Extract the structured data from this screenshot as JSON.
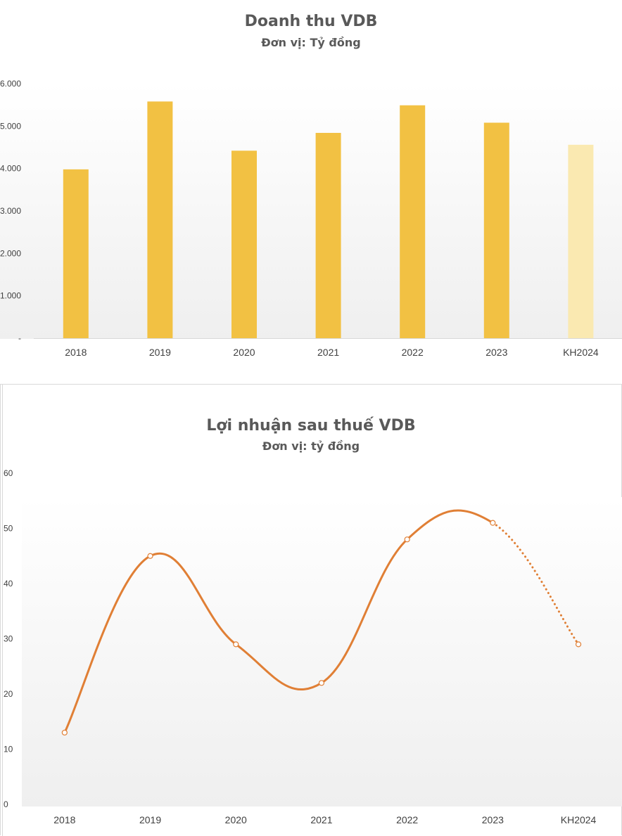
{
  "chart_data": [
    {
      "type": "bar",
      "title": "Doanh thu VDB",
      "subtitle": "Đơn vị: Tỷ đồng",
      "categories": [
        "2018",
        "2019",
        "2020",
        "2021",
        "2022",
        "2023",
        "KH2024"
      ],
      "values": [
        3980,
        5580,
        4420,
        4840,
        5490,
        5080,
        4560
      ],
      "ylim": [
        0,
        6000
      ],
      "yticks": [
        "-",
        "1.000",
        "2.000",
        "3.000",
        "4.000",
        "5.000",
        "6.000"
      ],
      "grid": false,
      "legend": "none",
      "colors": {
        "bar": "#f2c143",
        "plan_bar": "#fae9b1"
      }
    },
    {
      "type": "line",
      "title": "Lợi nhuận sau thuế VDB",
      "subtitle": "Đơn vị: tỷ đồng",
      "categories": [
        "2018",
        "2019",
        "2020",
        "2021",
        "2022",
        "2023",
        "KH2024"
      ],
      "values": [
        13,
        45,
        29,
        22,
        48,
        51,
        29
      ],
      "ylim": [
        0,
        60
      ],
      "yticks": [
        "0",
        "10",
        "20",
        "30",
        "40",
        "50",
        "60"
      ],
      "smooth": true,
      "grid": false,
      "legend": "none",
      "colors": {
        "line": "#e07f35",
        "marker_fill": "#ffffff"
      }
    }
  ]
}
